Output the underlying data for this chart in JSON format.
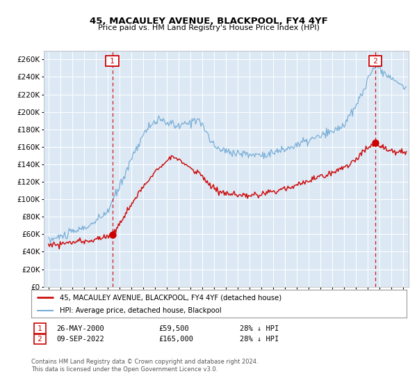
{
  "title": "45, MACAULEY AVENUE, BLACKPOOL, FY4 4YF",
  "subtitle": "Price paid vs. HM Land Registry's House Price Index (HPI)",
  "bg_color": "#dce9f5",
  "hpi_color": "#7aaed6",
  "price_color": "#cc1111",
  "marker_color": "#cc0000",
  "dashed_color": "#cc0000",
  "sale1_price": 59500,
  "sale2_price": 165000,
  "sale1_date": "26-MAY-2000",
  "sale2_date": "09-SEP-2022",
  "sale1_hpi": "28% ↓ HPI",
  "sale2_hpi": "28% ↓ HPI",
  "legend_line1": "45, MACAULEY AVENUE, BLACKPOOL, FY4 4YF (detached house)",
  "legend_line2": "HPI: Average price, detached house, Blackpool",
  "footer1": "Contains HM Land Registry data © Crown copyright and database right 2024.",
  "footer2": "This data is licensed under the Open Government Licence v3.0.",
  "ylim_max": 270000,
  "ylim_min": 0,
  "sale1_x": 2000.4,
  "sale2_x": 2022.69
}
